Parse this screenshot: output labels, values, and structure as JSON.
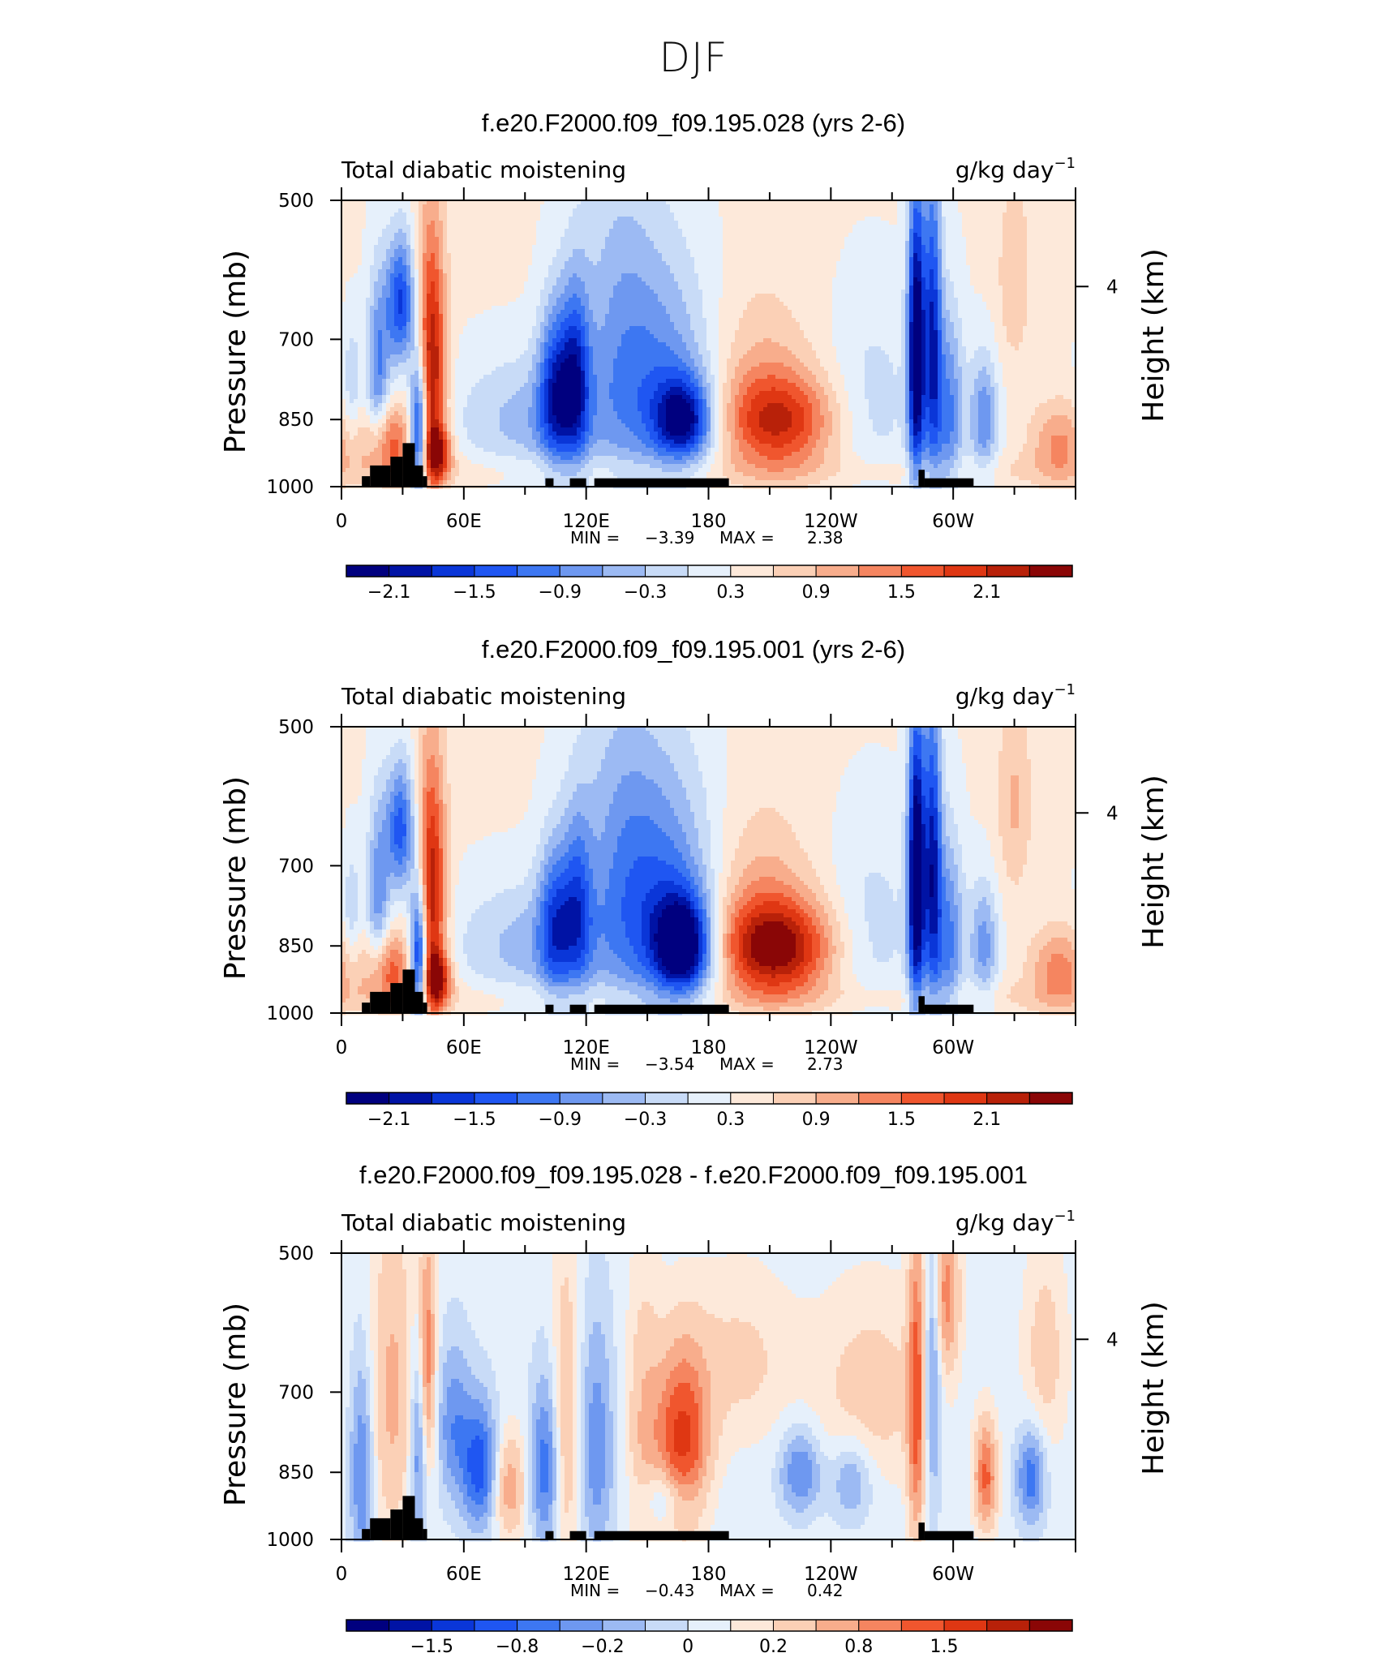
{
  "figure": {
    "title": "DJF"
  },
  "colors": {
    "levels_full": [
      "#00007f",
      "#0013a5",
      "#0a36d8",
      "#1f56f2",
      "#3d77f2",
      "#6e98f0",
      "#9cbaf3",
      "#c8dbf7",
      "#e6f0fb",
      "#fde9da",
      "#fbd0b6",
      "#f8ad8c",
      "#f58560",
      "#f0562e",
      "#df3713",
      "#b82109",
      "#8a0606"
    ],
    "shading_land": "#000000",
    "frame": "#000000"
  },
  "chart_data": [
    {
      "type": "heatmap",
      "title": "f.e20.F2000.f09_f09.195.028 (yrs 2-6)",
      "left_label": "Total diabatic moistening",
      "units_text": "g/kg day",
      "units_sup": "−1",
      "ylabel": "Pressure (mb)",
      "ylabel_right": "Height (km)",
      "yticks": [
        "500",
        "700",
        "850",
        "1000"
      ],
      "ytick_values": [
        500,
        700,
        850,
        1000
      ],
      "ylim": [
        1000,
        500
      ],
      "right_ticks": [
        "4"
      ],
      "right_tick_values": [
        4
      ],
      "xlabels": [
        "0",
        "60E",
        "120E",
        "180",
        "120W",
        "60W"
      ],
      "xtick_values": [
        0,
        60,
        120,
        180,
        240,
        300
      ],
      "xlim": [
        0,
        360
      ],
      "min_label": "MIN =",
      "min": "−3.39",
      "max_label": "MAX =",
      "max": "2.38",
      "colorbar_labels": [
        "−2.1",
        "−1.5",
        "−0.9",
        "−0.3",
        "0.3",
        "0.9",
        "1.5",
        "2.1"
      ],
      "features": [
        {
          "lon": 5,
          "p": 780,
          "v": -0.6,
          "sx": 3,
          "sy": 80
        },
        {
          "lon": 18,
          "p": 760,
          "v": -1.3,
          "sx": 4,
          "sy": 120
        },
        {
          "lon": 23,
          "p": 900,
          "v": 1.4,
          "sx": 8,
          "sy": 60
        },
        {
          "lon": 29,
          "p": 640,
          "v": -1.9,
          "sx": 5,
          "sy": 70
        },
        {
          "lon": 38,
          "p": 880,
          "v": -2.6,
          "sx": 3,
          "sy": 110
        },
        {
          "lon": 44,
          "p": 760,
          "v": 2.2,
          "sx": 5,
          "sy": 170
        },
        {
          "lon": 47,
          "p": 920,
          "v": 1.6,
          "sx": 5,
          "sy": 40
        },
        {
          "lon": 95,
          "p": 850,
          "v": -0.8,
          "sx": 28,
          "sy": 90
        },
        {
          "lon": 105,
          "p": 790,
          "v": -1.7,
          "sx": 6,
          "sy": 110
        },
        {
          "lon": 115,
          "p": 770,
          "v": -1.6,
          "sx": 5,
          "sy": 120
        },
        {
          "lon": 135,
          "p": 680,
          "v": -0.7,
          "sx": 14,
          "sy": 200
        },
        {
          "lon": 158,
          "p": 780,
          "v": -1.1,
          "sx": 18,
          "sy": 160
        },
        {
          "lon": 168,
          "p": 850,
          "v": -2.1,
          "sx": 10,
          "sy": 60
        },
        {
          "lon": 215,
          "p": 855,
          "v": 1.6,
          "sx": 20,
          "sy": 70
        },
        {
          "lon": 205,
          "p": 760,
          "v": 0.5,
          "sx": 18,
          "sy": 120
        },
        {
          "lon": 260,
          "p": 820,
          "v": -0.5,
          "sx": 16,
          "sy": 140
        },
        {
          "lon": 282,
          "p": 720,
          "v": -3.0,
          "sx": 3,
          "sy": 180
        },
        {
          "lon": 290,
          "p": 700,
          "v": -2.0,
          "sx": 3,
          "sy": 190
        },
        {
          "lon": 298,
          "p": 840,
          "v": -1.3,
          "sx": 5,
          "sy": 140
        },
        {
          "lon": 315,
          "p": 850,
          "v": -1.2,
          "sx": 5,
          "sy": 90
        },
        {
          "lon": 330,
          "p": 600,
          "v": 0.5,
          "sx": 6,
          "sy": 100
        },
        {
          "lon": 352,
          "p": 900,
          "v": 0.9,
          "sx": 10,
          "sy": 60
        }
      ],
      "topography": [
        [
          10,
          975
        ],
        [
          14,
          950
        ],
        [
          24,
          930
        ],
        [
          30,
          900
        ],
        [
          36,
          950
        ],
        [
          40,
          975
        ],
        [
          100,
          980
        ],
        [
          112,
          980
        ],
        [
          125,
          980
        ],
        [
          140,
          980
        ],
        [
          160,
          980
        ],
        [
          180,
          980
        ],
        [
          283,
          960
        ],
        [
          290,
          980
        ]
      ]
    },
    {
      "type": "heatmap",
      "title": "f.e20.F2000.f09_f09.195.001 (yrs 2-6)",
      "left_label": "Total diabatic moistening",
      "units_text": "g/kg day",
      "units_sup": "−1",
      "ylabel": "Pressure (mb)",
      "ylabel_right": "Height (km)",
      "yticks": [
        "500",
        "700",
        "850",
        "1000"
      ],
      "ytick_values": [
        500,
        700,
        850,
        1000
      ],
      "ylim": [
        1000,
        500
      ],
      "right_ticks": [
        "4"
      ],
      "right_tick_values": [
        4
      ],
      "xlabels": [
        "0",
        "60E",
        "120E",
        "180",
        "120W",
        "60W"
      ],
      "xtick_values": [
        0,
        60,
        120,
        180,
        240,
        300
      ],
      "xlim": [
        0,
        360
      ],
      "min_label": "MIN =",
      "min": "−3.54",
      "max_label": "MAX =",
      "max": "2.73",
      "colorbar_labels": [
        "−2.1",
        "−1.5",
        "−0.9",
        "−0.3",
        "0.3",
        "0.9",
        "1.5",
        "2.1"
      ],
      "features": [
        {
          "lon": 5,
          "p": 780,
          "v": -0.6,
          "sx": 3,
          "sy": 80
        },
        {
          "lon": 18,
          "p": 760,
          "v": -1.2,
          "sx": 4,
          "sy": 120
        },
        {
          "lon": 23,
          "p": 900,
          "v": 1.4,
          "sx": 8,
          "sy": 60
        },
        {
          "lon": 29,
          "p": 640,
          "v": -1.7,
          "sx": 5,
          "sy": 70
        },
        {
          "lon": 38,
          "p": 880,
          "v": -2.7,
          "sx": 3,
          "sy": 110
        },
        {
          "lon": 44,
          "p": 760,
          "v": 2.1,
          "sx": 5,
          "sy": 170
        },
        {
          "lon": 47,
          "p": 920,
          "v": 1.7,
          "sx": 5,
          "sy": 40
        },
        {
          "lon": 95,
          "p": 850,
          "v": -0.8,
          "sx": 28,
          "sy": 90
        },
        {
          "lon": 105,
          "p": 800,
          "v": -1.4,
          "sx": 6,
          "sy": 110
        },
        {
          "lon": 116,
          "p": 770,
          "v": -1.2,
          "sx": 5,
          "sy": 120
        },
        {
          "lon": 135,
          "p": 680,
          "v": -0.7,
          "sx": 14,
          "sy": 200
        },
        {
          "lon": 158,
          "p": 770,
          "v": -1.4,
          "sx": 18,
          "sy": 170
        },
        {
          "lon": 168,
          "p": 850,
          "v": -2.5,
          "sx": 10,
          "sy": 70
        },
        {
          "lon": 213,
          "p": 855,
          "v": 2.1,
          "sx": 20,
          "sy": 70
        },
        {
          "lon": 205,
          "p": 760,
          "v": 0.6,
          "sx": 18,
          "sy": 120
        },
        {
          "lon": 260,
          "p": 820,
          "v": -0.5,
          "sx": 16,
          "sy": 140
        },
        {
          "lon": 282,
          "p": 720,
          "v": -3.1,
          "sx": 3,
          "sy": 180
        },
        {
          "lon": 290,
          "p": 700,
          "v": -2.1,
          "sx": 3,
          "sy": 190
        },
        {
          "lon": 298,
          "p": 840,
          "v": -1.3,
          "sx": 5,
          "sy": 140
        },
        {
          "lon": 315,
          "p": 850,
          "v": -1.1,
          "sx": 5,
          "sy": 90
        },
        {
          "lon": 330,
          "p": 600,
          "v": 0.6,
          "sx": 6,
          "sy": 100
        },
        {
          "lon": 352,
          "p": 900,
          "v": 1.0,
          "sx": 10,
          "sy": 60
        }
      ],
      "topography": [
        [
          10,
          975
        ],
        [
          14,
          950
        ],
        [
          24,
          930
        ],
        [
          30,
          900
        ],
        [
          36,
          950
        ],
        [
          40,
          975
        ],
        [
          100,
          980
        ],
        [
          112,
          980
        ],
        [
          125,
          980
        ],
        [
          140,
          980
        ],
        [
          160,
          980
        ],
        [
          180,
          980
        ],
        [
          283,
          960
        ],
        [
          290,
          980
        ]
      ]
    },
    {
      "type": "heatmap",
      "title": "f.e20.F2000.f09_f09.195.028 - f.e20.F2000.f09_f09.195.001",
      "left_label": "Total diabatic moistening",
      "units_text": "g/kg day",
      "units_sup": "−1",
      "ylabel": "Pressure (mb)",
      "ylabel_right": "Height (km)",
      "yticks": [
        "500",
        "700",
        "850",
        "1000"
      ],
      "ytick_values": [
        500,
        700,
        850,
        1000
      ],
      "ylim": [
        1000,
        500
      ],
      "right_ticks": [
        "4"
      ],
      "right_tick_values": [
        4
      ],
      "xlabels": [
        "0",
        "60E",
        "120E",
        "180",
        "120W",
        "60W"
      ],
      "xtick_values": [
        0,
        60,
        120,
        180,
        240,
        300
      ],
      "xlim": [
        0,
        360
      ],
      "min_label": "MIN =",
      "min": "−0.43",
      "max_label": "MAX =",
      "max": "0.42",
      "colorbar_labels": [
        "−1.5",
        "−0.8",
        "−0.2",
        "0",
        "0.2",
        "0.8",
        "1.5"
      ],
      "features": [
        {
          "lon": 10,
          "p": 850,
          "v": -0.14,
          "sx": 4,
          "sy": 150
        },
        {
          "lon": 25,
          "p": 700,
          "v": 0.1,
          "sx": 8,
          "sy": 200
        },
        {
          "lon": 38,
          "p": 800,
          "v": -0.15,
          "sx": 3,
          "sy": 140
        },
        {
          "lon": 42,
          "p": 660,
          "v": 0.17,
          "sx": 3,
          "sy": 140
        },
        {
          "lon": 55,
          "p": 760,
          "v": -0.12,
          "sx": 6,
          "sy": 100
        },
        {
          "lon": 68,
          "p": 840,
          "v": -0.2,
          "sx": 6,
          "sy": 90
        },
        {
          "lon": 82,
          "p": 880,
          "v": 0.12,
          "sx": 6,
          "sy": 80
        },
        {
          "lon": 100,
          "p": 840,
          "v": -0.16,
          "sx": 5,
          "sy": 120
        },
        {
          "lon": 110,
          "p": 760,
          "v": 0.1,
          "sx": 5,
          "sy": 200
        },
        {
          "lon": 125,
          "p": 800,
          "v": -0.12,
          "sx": 6,
          "sy": 160
        },
        {
          "lon": 148,
          "p": 780,
          "v": 0.08,
          "sx": 6,
          "sy": 200
        },
        {
          "lon": 167,
          "p": 800,
          "v": 0.24,
          "sx": 9,
          "sy": 120
        },
        {
          "lon": 160,
          "p": 900,
          "v": -0.1,
          "sx": 10,
          "sy": 50
        },
        {
          "lon": 195,
          "p": 650,
          "v": 0.06,
          "sx": 20,
          "sy": 100
        },
        {
          "lon": 225,
          "p": 850,
          "v": -0.14,
          "sx": 7,
          "sy": 60
        },
        {
          "lon": 250,
          "p": 870,
          "v": -0.1,
          "sx": 7,
          "sy": 60
        },
        {
          "lon": 260,
          "p": 700,
          "v": 0.07,
          "sx": 20,
          "sy": 120
        },
        {
          "lon": 282,
          "p": 720,
          "v": 0.18,
          "sx": 3,
          "sy": 200
        },
        {
          "lon": 290,
          "p": 650,
          "v": -0.14,
          "sx": 3,
          "sy": 170
        },
        {
          "lon": 296,
          "p": 550,
          "v": 0.15,
          "sx": 5,
          "sy": 80
        },
        {
          "lon": 316,
          "p": 860,
          "v": 0.18,
          "sx": 4,
          "sy": 80
        },
        {
          "lon": 338,
          "p": 860,
          "v": -0.16,
          "sx": 5,
          "sy": 70
        },
        {
          "lon": 345,
          "p": 640,
          "v": 0.07,
          "sx": 8,
          "sy": 120
        }
      ],
      "topography": [
        [
          10,
          975
        ],
        [
          14,
          950
        ],
        [
          24,
          930
        ],
        [
          30,
          900
        ],
        [
          36,
          950
        ],
        [
          40,
          975
        ],
        [
          100,
          980
        ],
        [
          112,
          980
        ],
        [
          125,
          980
        ],
        [
          140,
          980
        ],
        [
          160,
          980
        ],
        [
          180,
          980
        ],
        [
          283,
          960
        ],
        [
          290,
          980
        ]
      ]
    }
  ]
}
